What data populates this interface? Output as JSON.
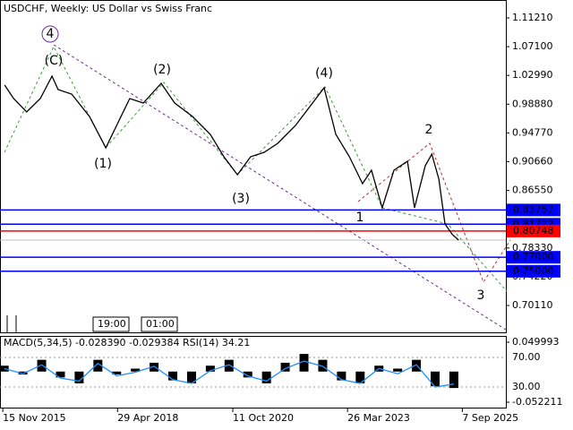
{
  "chart_data": [
    {
      "type": "line",
      "title": "USDCHF, Weekly:  US Dollar vs Swiss Franc",
      "xlim": [
        2015.81,
        2026.61
      ],
      "ylim": [
        0.6614,
        1.1377
      ],
      "xticks": [
        {
          "value": 2015.87,
          "label": "15 Nov 2015"
        },
        {
          "value": 2018.32,
          "label": "29 Apr 2018"
        },
        {
          "value": 2020.78,
          "label": "11 Oct 2020"
        },
        {
          "value": 2023.23,
          "label": "26 Mar 2023"
        },
        {
          "value": 2025.68,
          "label": "7 Sep 2025"
        }
      ],
      "yticks": [
        {
          "value": 1.1121,
          "label": "1.11210"
        },
        {
          "value": 1.071,
          "label": "1.07100"
        },
        {
          "value": 1.0299,
          "label": "1.02990"
        },
        {
          "value": 0.9888,
          "label": "0.98880"
        },
        {
          "value": 0.9477,
          "label": "0.94770"
        },
        {
          "value": 0.9066,
          "label": "0.90660"
        },
        {
          "value": 0.8655,
          "label": "0.86550"
        },
        {
          "value": 0.7833,
          "label": "0.78330"
        },
        {
          "value": 0.7422,
          "label": "0.74220"
        },
        {
          "value": 0.7011,
          "label": "0.70110"
        }
      ],
      "series": [
        {
          "color": "#000000",
          "x": [
            2015.91,
            2016.1,
            2016.38,
            2016.67,
            2016.92,
            2017.05,
            2017.34,
            2017.72,
            2018.07,
            2018.3,
            2018.58,
            2018.87,
            2019.25,
            2019.54,
            2019.92,
            2020.3,
            2020.59,
            2020.88,
            2021.16,
            2021.45,
            2021.74,
            2022.12,
            2022.41,
            2022.73,
            2022.98,
            2023.27,
            2023.55,
            2023.74,
            2023.97,
            2024.22,
            2024.51,
            2024.66,
            2024.89,
            2025.03,
            2025.18,
            2025.31,
            2025.47,
            2025.6
          ],
          "values": [
            1.0161,
            0.9969,
            0.9777,
            0.9969,
            1.0289,
            1.0097,
            1.0033,
            0.9713,
            0.9264,
            0.9585,
            0.9969,
            0.9905,
            1.0186,
            0.9905,
            0.9713,
            0.9456,
            0.9136,
            0.888,
            0.9136,
            0.92,
            0.9328,
            0.9585,
            0.9841,
            1.0122,
            0.9456,
            0.9136,
            0.8752,
            0.8944,
            0.8407,
            0.8944,
            0.9072,
            0.8407,
            0.9008,
            0.9175,
            0.8816,
            0.8176,
            0.8022,
            0.7946
          ]
        }
      ],
      "levels": [
        {
          "value": 0.83757,
          "label": "0.83757",
          "color": "#0000ff"
        },
        {
          "value": 0.81722,
          "label": "0.81722",
          "color": "#0000ff"
        },
        {
          "value": 0.80748,
          "label": "0.80748",
          "color": "#ff0000"
        },
        {
          "value": 0.77,
          "label": "0.77000",
          "color": "#0000ff"
        },
        {
          "value": 0.75,
          "label": "0.75000",
          "color": "#0000ff"
        }
      ],
      "annotations": [
        {
          "text": "4",
          "color": "#6a2c91"
        },
        {
          "text": "(C)",
          "color": "#3c9a3c"
        },
        {
          "text": "(1)",
          "color": "#3c9a3c"
        },
        {
          "text": "(2)",
          "color": "#3c9a3c"
        },
        {
          "text": "(3)",
          "color": "#3c9a3c"
        },
        {
          "text": "(4)",
          "color": "#3c9a3c"
        },
        {
          "text": "1",
          "color": "#b03030"
        },
        {
          "text": "2",
          "color": "#b03030"
        },
        {
          "text": "3",
          "color": "#b03030"
        }
      ],
      "time_labels": [
        "19:00",
        "01:00"
      ]
    },
    {
      "type": "line",
      "title": "MACD(5,34,5) -0.028390 -0.029384 RSI(14) 34.21",
      "xlim": [
        2015.81,
        2026.61
      ],
      "ylim": [
        9.4,
        90.6
      ],
      "yticks": [
        {
          "value": 70,
          "label": "70.00"
        },
        {
          "value": 30,
          "label": "30.00"
        }
      ],
      "y2lim": [
        -0.052211,
        0.049993
      ],
      "y2ticks": [
        -0.052211,
        0.049993
      ],
      "series": [
        {
          "color": "#000000",
          "axis": "y2",
          "kind": "histogram",
          "x": [
            2015.9,
            2016.3,
            2016.7,
            2017.1,
            2017.5,
            2017.9,
            2018.3,
            2018.7,
            2019.1,
            2019.5,
            2019.9,
            2020.3,
            2020.7,
            2021.1,
            2021.5,
            2021.9,
            2022.3,
            2022.7,
            2023.1,
            2023.5,
            2023.9,
            2024.3,
            2024.7,
            2025.1,
            2025.5
          ],
          "values": [
            0.01,
            -0.005,
            0.02,
            -0.01,
            -0.02,
            0.02,
            -0.005,
            0.005,
            0.015,
            -0.015,
            -0.02,
            0.01,
            0.02,
            -0.01,
            -0.02,
            0.015,
            0.03,
            0.02,
            -0.015,
            -0.02,
            0.01,
            0.005,
            0.02,
            -0.025,
            -0.028
          ]
        },
        {
          "color": "#1e90ff",
          "x": [
            2015.9,
            2016.3,
            2016.7,
            2017.1,
            2017.5,
            2017.9,
            2018.3,
            2018.7,
            2019.1,
            2019.5,
            2019.9,
            2020.3,
            2020.7,
            2021.1,
            2021.5,
            2021.9,
            2022.3,
            2022.7,
            2023.1,
            2023.5,
            2023.9,
            2024.3,
            2024.7,
            2025.1,
            2025.5
          ],
          "values": [
            55,
            48,
            60,
            42,
            38,
            62,
            45,
            50,
            58,
            40,
            35,
            52,
            60,
            45,
            38,
            55,
            65,
            58,
            40,
            35,
            55,
            48,
            60,
            30,
            34
          ]
        }
      ]
    }
  ]
}
